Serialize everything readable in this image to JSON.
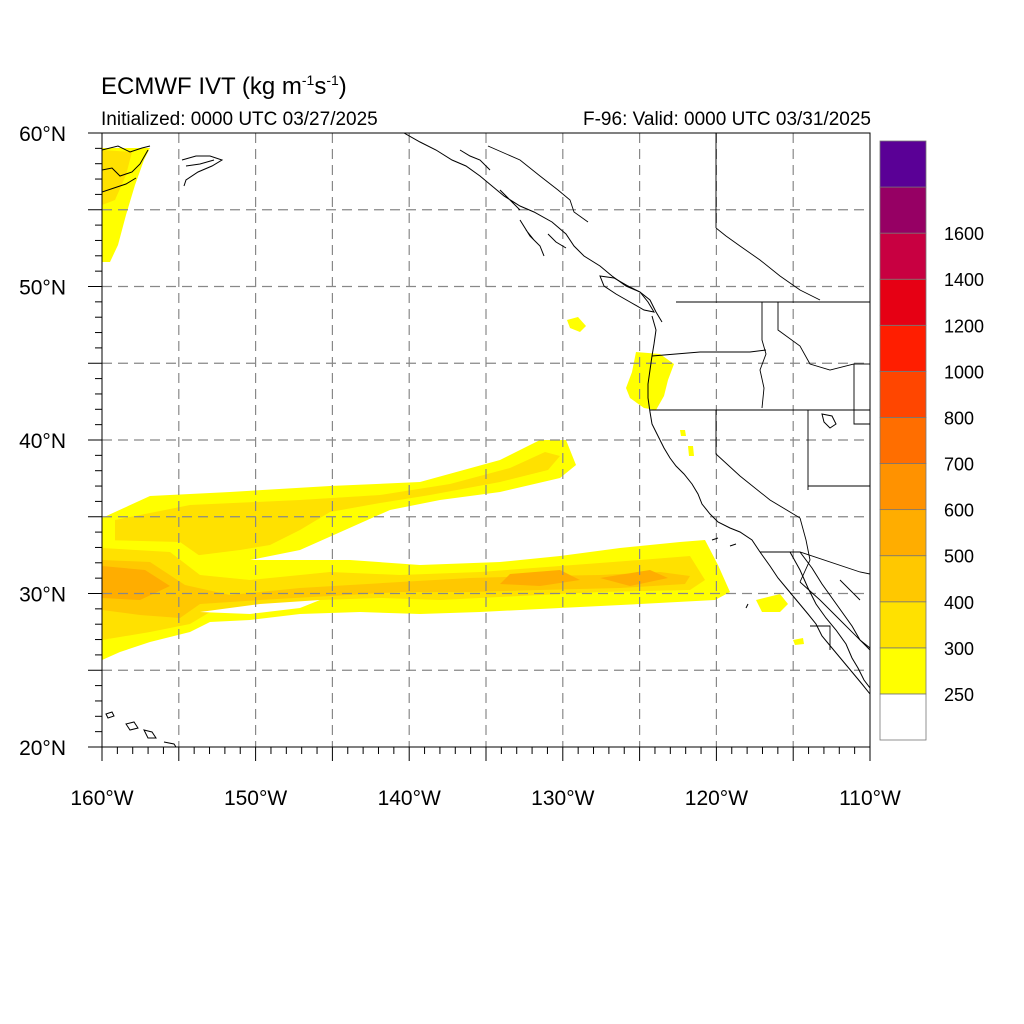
{
  "title": {
    "main": "ECMWF IVT (kg m",
    "sup1": "-1",
    "mid": "s",
    "sup2": "-1",
    "end": ")"
  },
  "subtitle_left": "Initialized: 0000 UTC 03/27/2025",
  "subtitle_right": "F-96: Valid: 0000 UTC 03/31/2025",
  "map": {
    "projection": "cylindrical equidistant",
    "lon_range": [
      -160,
      -110
    ],
    "lat_range": [
      20,
      60
    ],
    "grid": "dashed, every 5 degrees",
    "lat_labels": [
      "20°N",
      "30°N",
      "40°N",
      "50°N",
      "60°N"
    ],
    "lon_labels": [
      "160°W",
      "150°W",
      "140°W",
      "130°W",
      "120°W",
      "110°W"
    ],
    "features": [
      "coastlines",
      "US state boundaries",
      "Canada/US/Mexico borders"
    ]
  },
  "colorbar": {
    "labels": [
      "250",
      "300",
      "400",
      "500",
      "600",
      "700",
      "800",
      "1000",
      "1200",
      "1400",
      "1600"
    ],
    "colors": [
      "#ffffff",
      "#ffff00",
      "#ffe100",
      "#ffc800",
      "#ffad00",
      "#ff9200",
      "#ff6e00",
      "#ff4600",
      "#ff1e00",
      "#e60014",
      "#c80041",
      "#960064",
      "#5a0096"
    ]
  }
}
